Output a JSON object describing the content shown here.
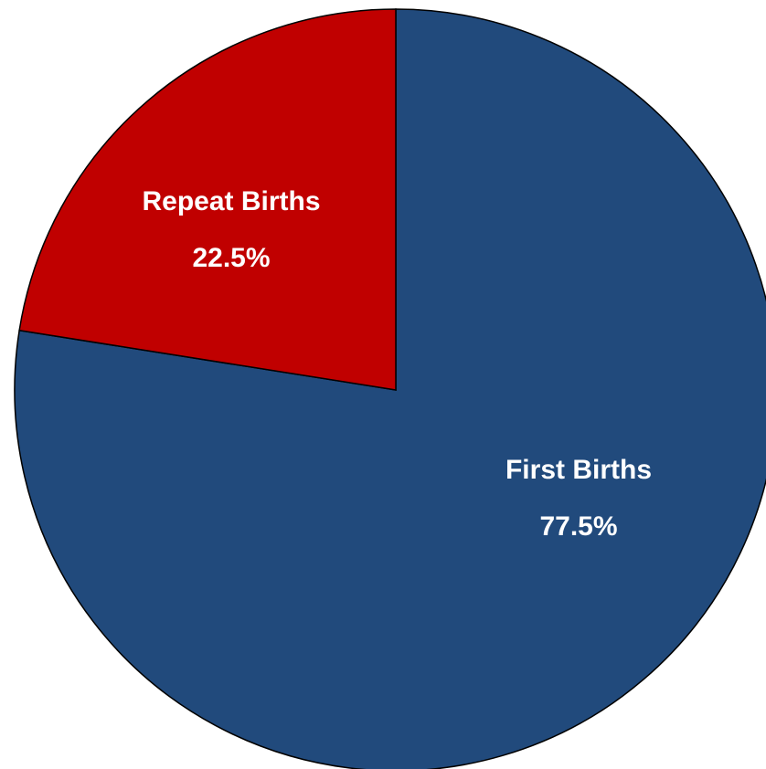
{
  "chart_data": {
    "type": "pie",
    "categories": [
      "First Births",
      "Repeat Births"
    ],
    "values": [
      77.5,
      22.5
    ],
    "value_labels": [
      "77.5%",
      "22.5%"
    ],
    "colors": [
      "#214a7c",
      "#c00000"
    ]
  }
}
